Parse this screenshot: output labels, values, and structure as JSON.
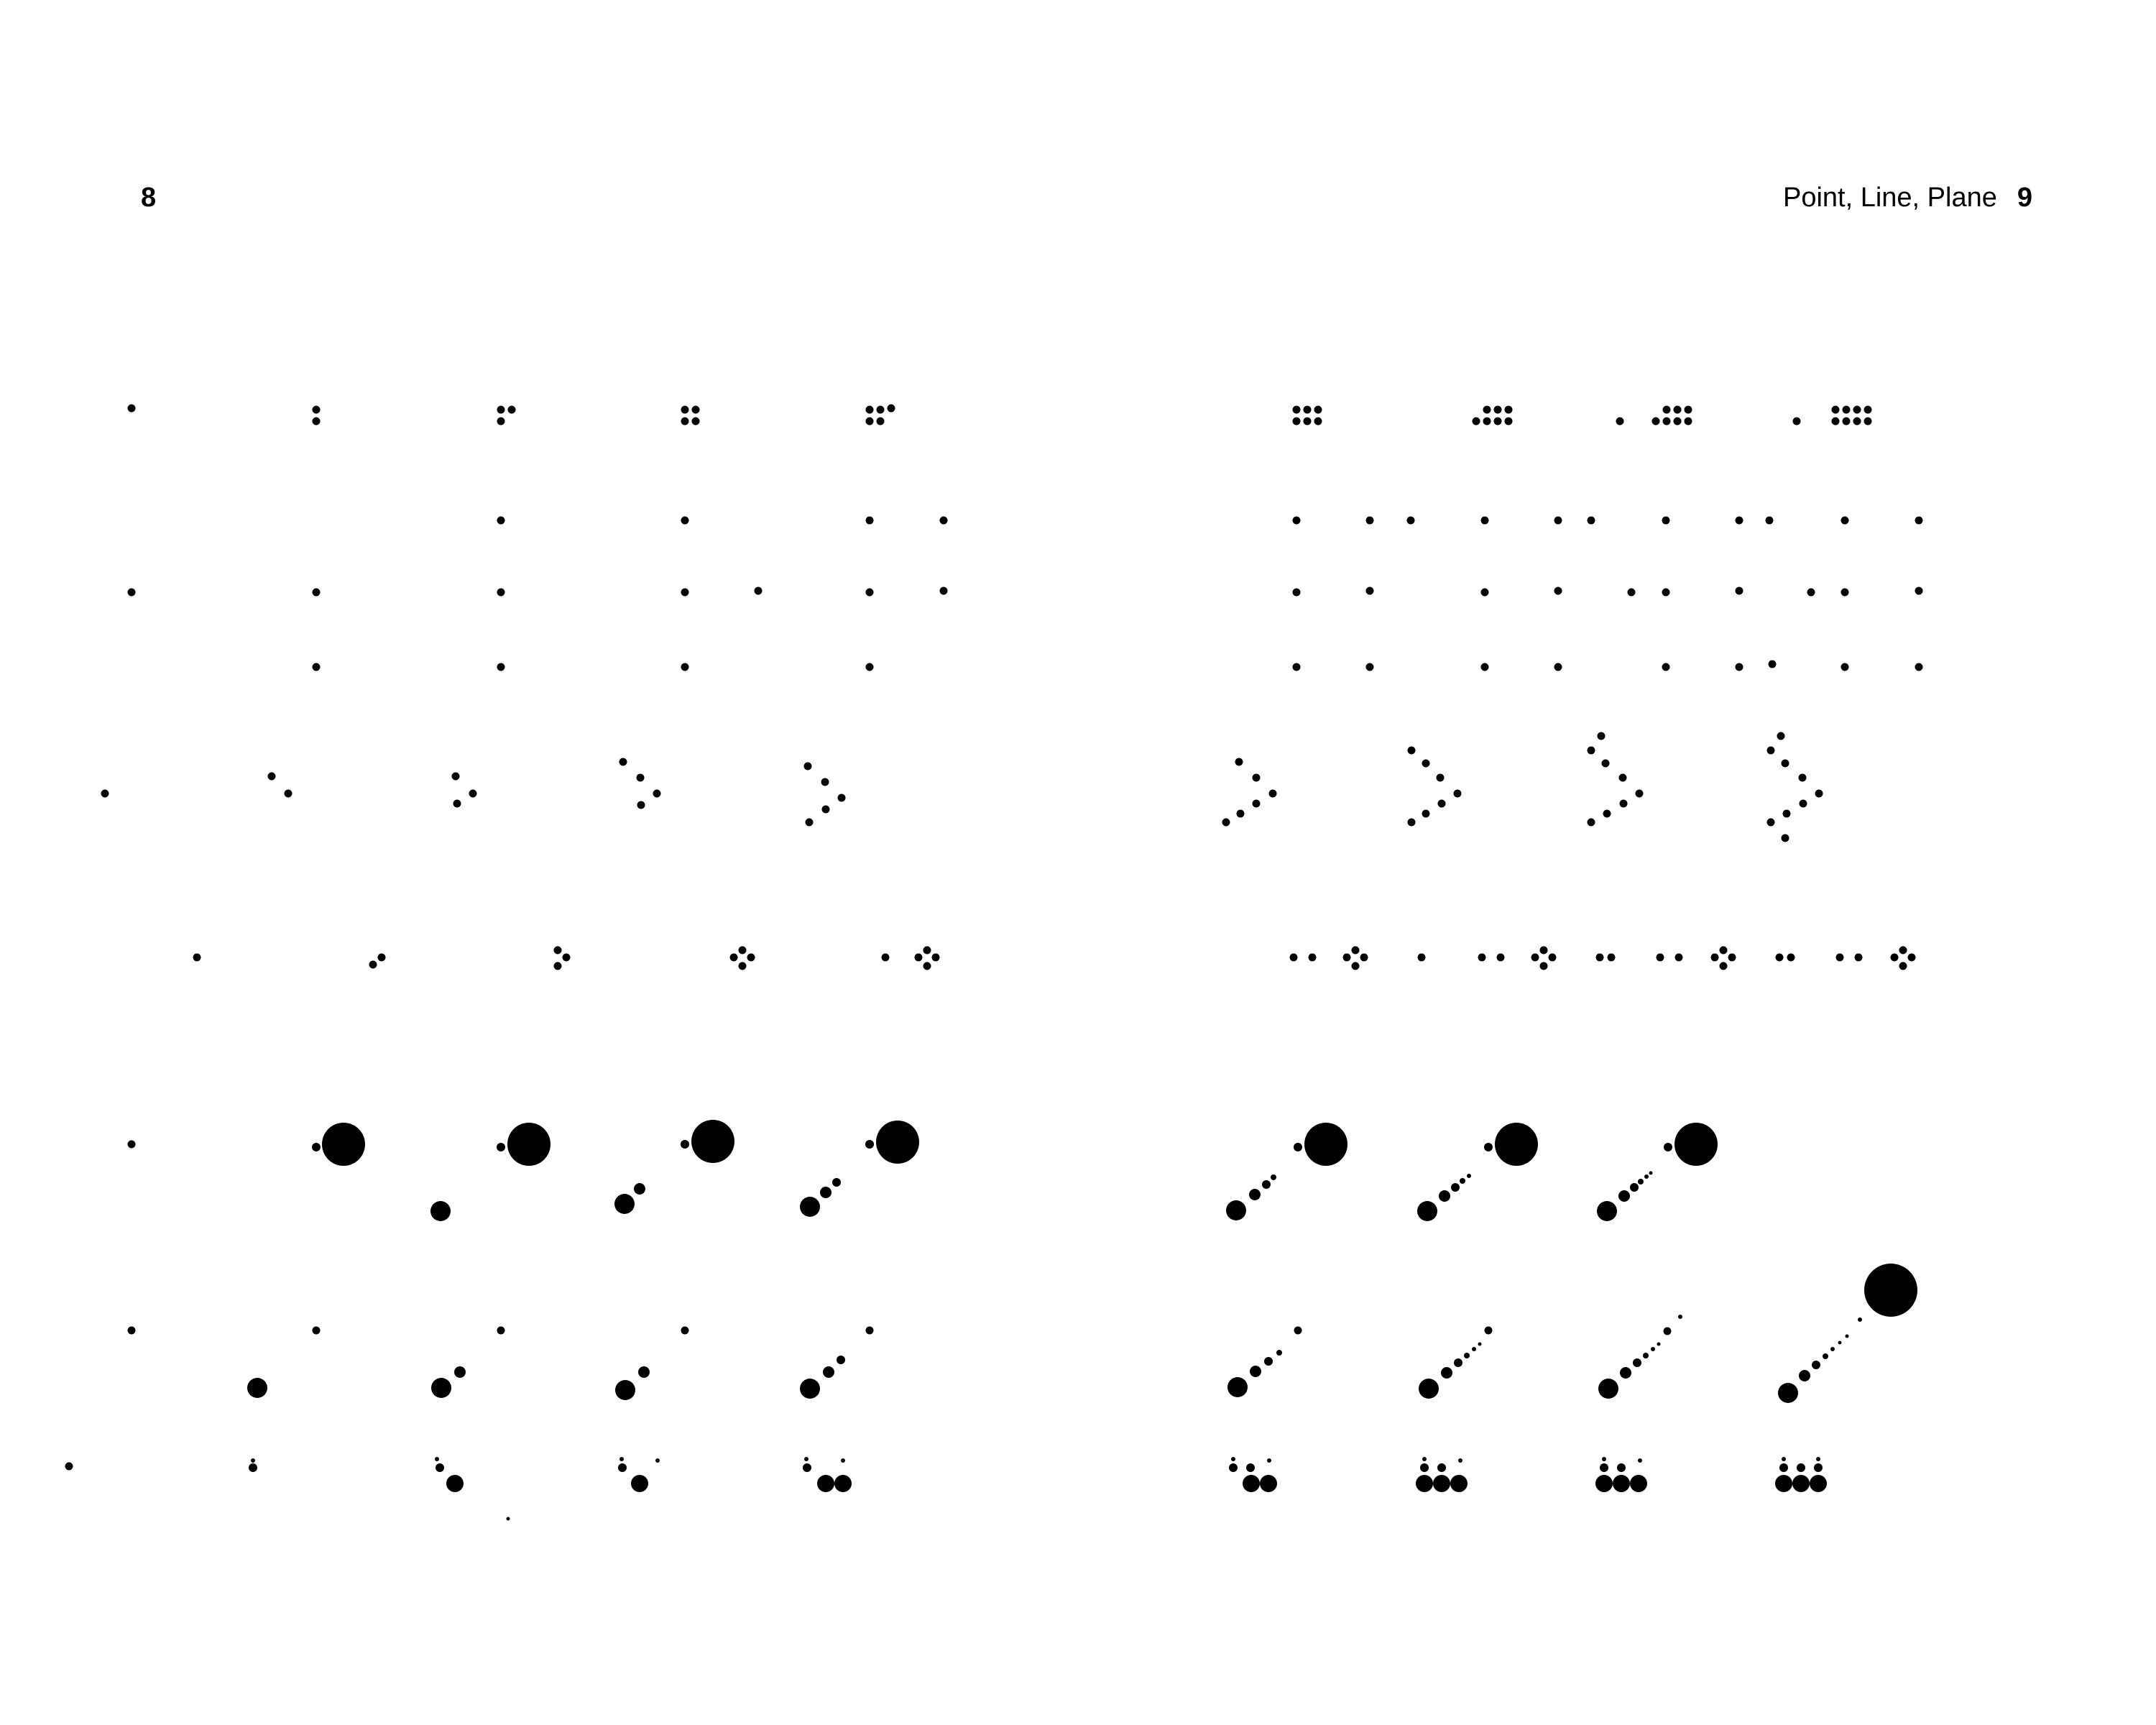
{
  "left_page": {
    "folio": "8"
  },
  "right_page": {
    "running_head": "Point, Line, Plane",
    "folio": "9"
  },
  "colors": {
    "ink": "#000000",
    "paper": "#ffffff"
  }
}
